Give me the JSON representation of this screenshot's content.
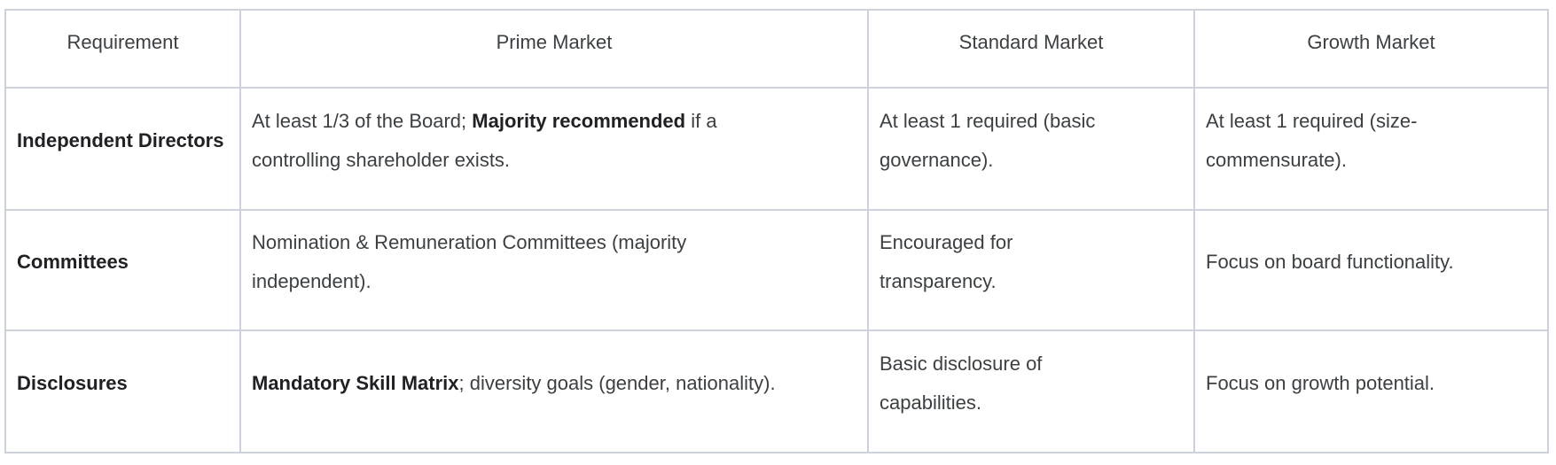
{
  "colors": {
    "background": "#ffffff",
    "border": "#ccd2db",
    "text": "#3c4043",
    "bold_text": "#202124"
  },
  "table": {
    "headers": [
      "Requirement",
      "Prime Market",
      "Standard Market",
      "Growth Market"
    ],
    "rows": [
      {
        "label": "Independent Directors",
        "cells": [
          {
            "segments": [
              {
                "text": "At least 1/3 of the Board; "
              },
              {
                "text": "Majority recommended",
                "bold": true
              },
              {
                "text": " if a controlling shareholder exists."
              }
            ]
          },
          {
            "segments": [
              {
                "text": "At least 1 required (basic governance)."
              }
            ]
          },
          {
            "segments": [
              {
                "text": "At least 1 required (size-commensurate)."
              }
            ]
          }
        ]
      },
      {
        "label": "Committees",
        "cells": [
          {
            "segments": [
              {
                "text": "Nomination & Remuneration Committees (majority independent)."
              }
            ]
          },
          {
            "segments": [
              {
                "text": "Encouraged for transparency."
              }
            ]
          },
          {
            "segments": [
              {
                "text": "Focus on board functionality."
              }
            ]
          }
        ]
      },
      {
        "label": "Disclosures",
        "cells": [
          {
            "segments": [
              {
                "text": "Mandatory Skill Matrix",
                "bold": true
              },
              {
                "text": "; diversity goals (gender, nationality)."
              }
            ]
          },
          {
            "segments": [
              {
                "text": "Basic disclosure of capabilities."
              }
            ]
          },
          {
            "segments": [
              {
                "text": "Focus on growth potential."
              }
            ]
          }
        ]
      }
    ]
  }
}
